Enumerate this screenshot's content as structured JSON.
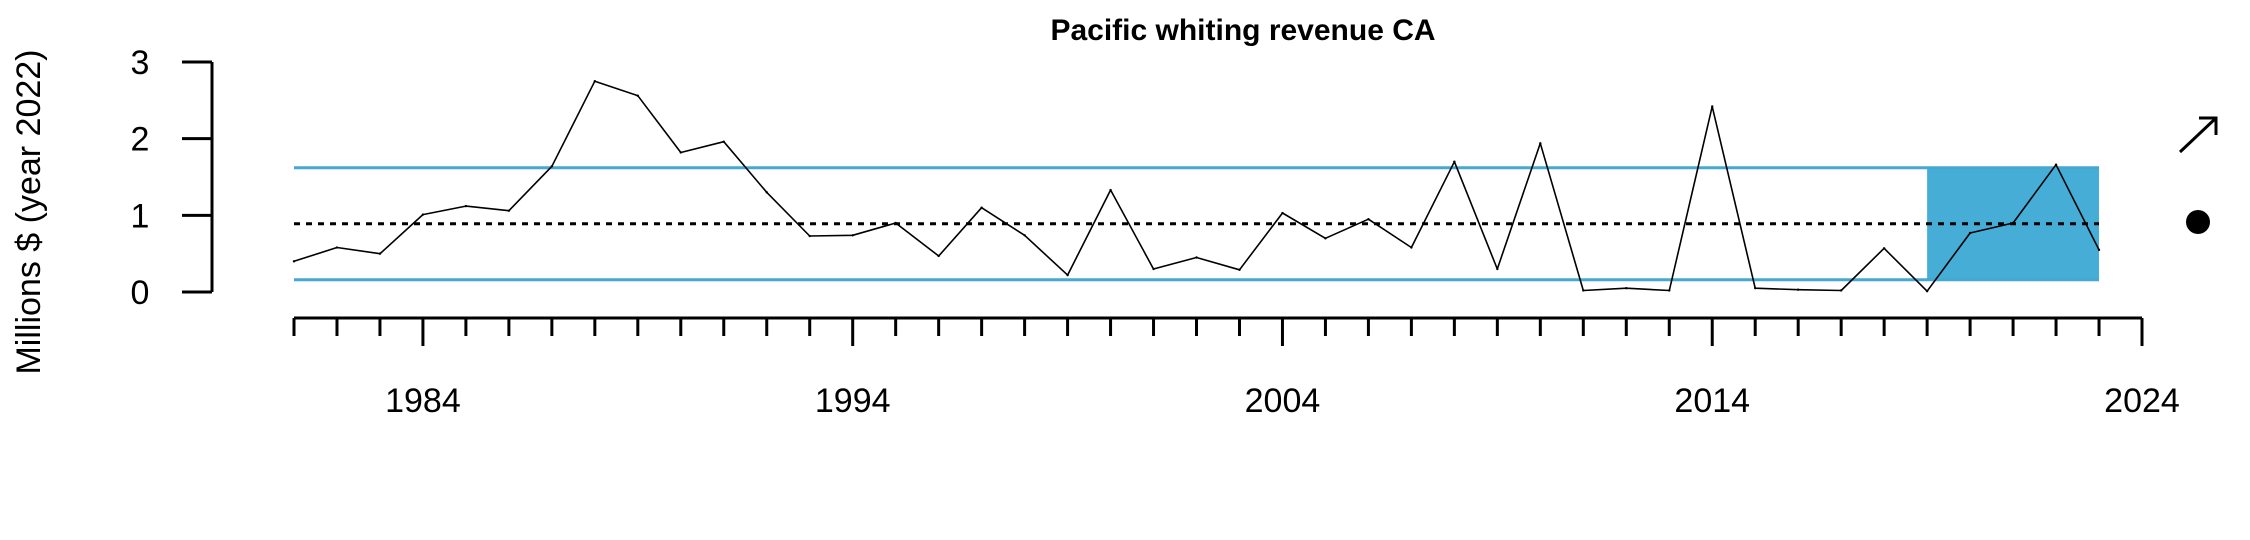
{
  "chart_data": {
    "type": "line",
    "title": "Pacific whiting revenue CA",
    "ylabel": "Millions $ (year 2022)",
    "xlabel": "",
    "xlim": [
      1981,
      2024
    ],
    "ylim": [
      0,
      3
    ],
    "x_ticks": [
      1984,
      1994,
      2004,
      2014,
      2024
    ],
    "y_ticks": [
      0,
      1,
      2,
      3
    ],
    "grid": false,
    "series": [
      {
        "x": [
          1981,
          1982,
          1983,
          1984,
          1985,
          1986,
          1987,
          1988,
          1989,
          1990,
          1991,
          1992,
          1993,
          1994,
          1995,
          1996,
          1997,
          1998,
          1999,
          2000,
          2001,
          2002,
          2003,
          2004,
          2005,
          2006,
          2007,
          2008,
          2009,
          2010,
          2011,
          2012,
          2013,
          2014,
          2015,
          2016,
          2017,
          2018,
          2019,
          2020,
          2021,
          2022,
          2023
        ],
        "values": [
          0.4,
          0.58,
          0.5,
          1.01,
          1.12,
          1.06,
          1.64,
          2.75,
          2.56,
          1.82,
          1.96,
          1.3,
          0.73,
          0.74,
          0.9,
          0.47,
          1.1,
          0.74,
          0.22,
          1.33,
          0.3,
          0.45,
          0.29,
          1.03,
          0.7,
          0.95,
          0.58,
          1.7,
          0.3,
          1.94,
          0.02,
          0.05,
          0.02,
          2.42,
          0.05,
          0.03,
          0.02,
          0.57,
          0.01,
          0.77,
          0.9,
          1.66,
          0.55
        ]
      }
    ],
    "mean_line": 0.89,
    "upper_band": 1.62,
    "lower_band": 0.16,
    "highlight_x_range": [
      2019,
      2023
    ],
    "colors": {
      "band": "#45A8D1",
      "highlight": "#45ADD6",
      "line": "#000000"
    },
    "trend_icon": "arrow-up-right-icon",
    "level_icon": "filled-circle-icon"
  }
}
